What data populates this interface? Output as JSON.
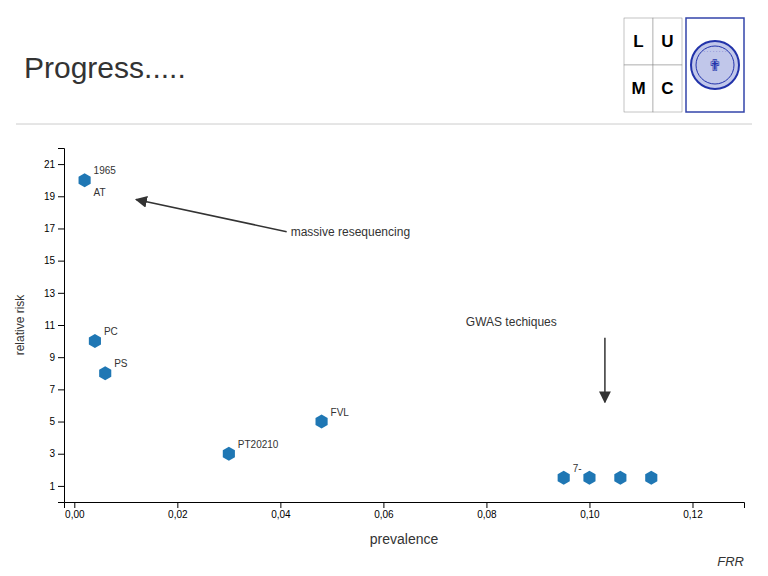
{
  "chart_data": {
    "type": "scatter",
    "title": "Progress.....",
    "xlabel": "prevalence",
    "ylabel": "relative risk",
    "x": [
      0.002,
      0.004,
      0.006,
      0.03,
      0.048,
      0.095,
      0.1,
      0.106,
      0.112
    ],
    "values": [
      20,
      10,
      8,
      3,
      5,
      1.5,
      1.5,
      1.5,
      1.5
    ],
    "labels": [
      "1965",
      "PC",
      "PS",
      "PT20210",
      "FVL",
      "7-",
      null,
      null,
      null
    ],
    "sublabels": [
      "AT",
      null,
      null,
      null,
      null,
      null,
      null,
      null,
      null
    ],
    "marker": "hexagon",
    "xlim": [
      -0.002,
      0.13
    ],
    "xticks": [
      {
        "value": 0.0,
        "label": "0,00"
      },
      {
        "value": 0.02,
        "label": "0,02"
      },
      {
        "value": 0.04,
        "label": "0,04"
      },
      {
        "value": 0.06,
        "label": "0,06"
      },
      {
        "value": 0.08,
        "label": "0,08"
      },
      {
        "value": 0.1,
        "label": "0,10"
      },
      {
        "value": 0.12,
        "label": "0,12"
      }
    ],
    "ylim": [
      0,
      22
    ],
    "yticks": [
      1,
      3,
      5,
      7,
      9,
      11,
      13,
      15,
      17,
      19,
      21
    ],
    "grid": false,
    "annotations": [
      {
        "text": "massive resequencing",
        "x": 0.042,
        "y": 16.8,
        "arrow": {
          "to": [
            0.012,
            18.8
          ]
        }
      },
      {
        "text": "GWAS techiques",
        "x": 0.076,
        "y": 11.2,
        "arrow": {
          "from": [
            0.103,
            10.2
          ],
          "to": [
            0.103,
            6.2
          ]
        }
      }
    ],
    "footnote": "FRR",
    "logo": {
      "letters": [
        "L",
        "U",
        "M",
        "C"
      ],
      "symbol": "✟",
      "ornament": "· · · · · · · ·"
    }
  }
}
